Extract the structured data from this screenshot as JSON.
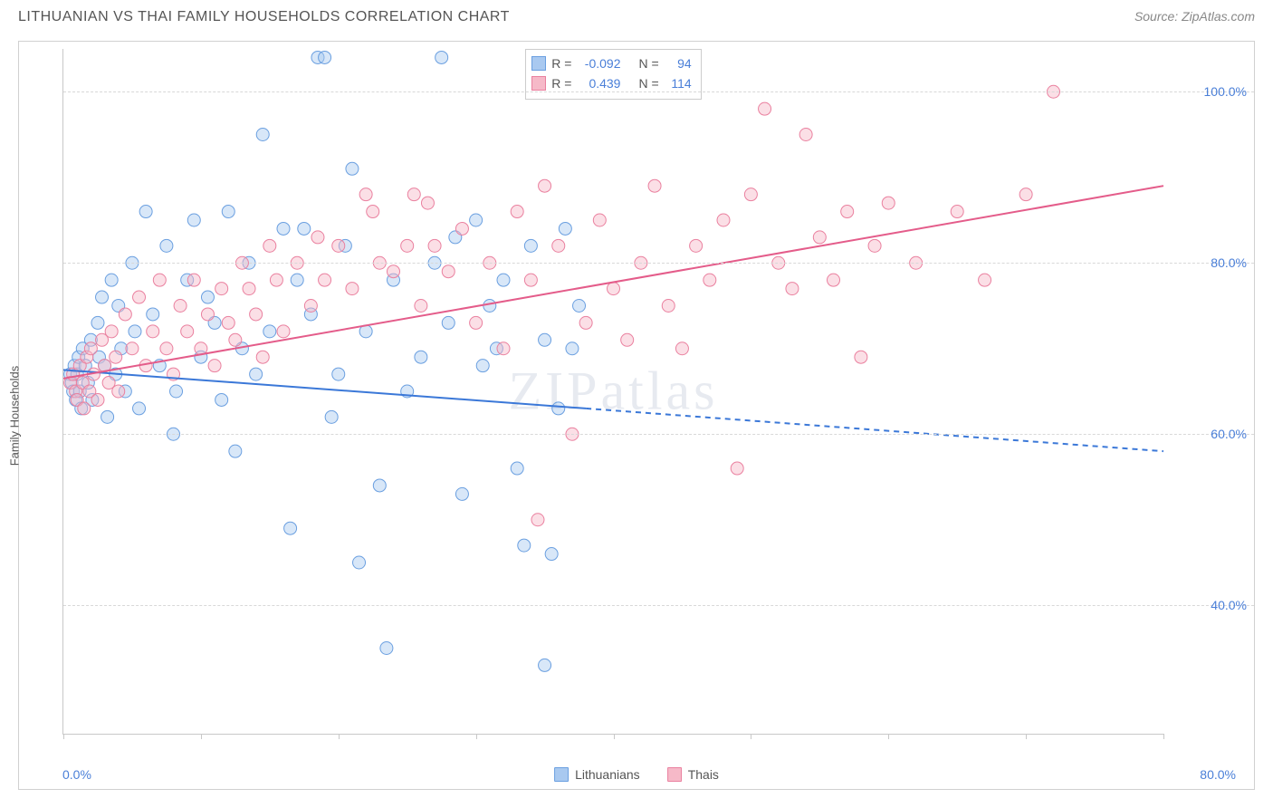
{
  "title": "LITHUANIAN VS THAI FAMILY HOUSEHOLDS CORRELATION CHART",
  "source_label": "Source: ",
  "source_name": "ZipAtlas.com",
  "ylabel": "Family Households",
  "watermark": "ZIPatlas",
  "chart": {
    "type": "scatter",
    "xlim": [
      0,
      80
    ],
    "ylim": [
      25,
      105
    ],
    "xtick_positions_pct": [
      0,
      10,
      20,
      30,
      40,
      50,
      60,
      70,
      80
    ],
    "ytick_labels": [
      {
        "value": 40.0,
        "label": "40.0%"
      },
      {
        "value": 60.0,
        "label": "60.0%"
      },
      {
        "value": 80.0,
        "label": "80.0%"
      },
      {
        "value": 100.0,
        "label": "100.0%"
      }
    ],
    "xaxis_left_label": "0.0%",
    "xaxis_right_label": "80.0%",
    "background_color": "#ffffff",
    "grid_color": "#d8d8d8",
    "axis_color": "#c8c8c8",
    "marker_radius": 7,
    "marker_opacity": 0.45,
    "line_width": 2
  },
  "series": [
    {
      "name": "Lithuanians",
      "color_fill": "#a9c9f0",
      "color_stroke": "#6a9fe0",
      "line_color": "#3b78d8",
      "r_value": "-0.092",
      "n_value": "94",
      "regression": {
        "x1": 0,
        "y1": 67.5,
        "x2_solid": 38,
        "y2_solid": 63.0,
        "x2": 80,
        "y2": 58.0
      },
      "points": [
        [
          0.5,
          67
        ],
        [
          0.6,
          66
        ],
        [
          0.7,
          65
        ],
        [
          0.8,
          68
        ],
        [
          0.9,
          64
        ],
        [
          1.0,
          67
        ],
        [
          1.1,
          69
        ],
        [
          1.2,
          65
        ],
        [
          1.3,
          63
        ],
        [
          1.4,
          70
        ],
        [
          1.6,
          68
        ],
        [
          1.8,
          66
        ],
        [
          2.0,
          71
        ],
        [
          2.1,
          64
        ],
        [
          2.5,
          73
        ],
        [
          2.6,
          69
        ],
        [
          2.8,
          76
        ],
        [
          3.0,
          68
        ],
        [
          3.2,
          62
        ],
        [
          3.5,
          78
        ],
        [
          3.8,
          67
        ],
        [
          4.0,
          75
        ],
        [
          4.2,
          70
        ],
        [
          4.5,
          65
        ],
        [
          5.0,
          80
        ],
        [
          5.2,
          72
        ],
        [
          5.5,
          63
        ],
        [
          6.0,
          86
        ],
        [
          6.5,
          74
        ],
        [
          7.0,
          68
        ],
        [
          7.5,
          82
        ],
        [
          8.0,
          60
        ],
        [
          8.2,
          65
        ],
        [
          9.0,
          78
        ],
        [
          9.5,
          85
        ],
        [
          10.0,
          69
        ],
        [
          10.5,
          76
        ],
        [
          11.0,
          73
        ],
        [
          11.5,
          64
        ],
        [
          12.0,
          86
        ],
        [
          12.5,
          58
        ],
        [
          13.0,
          70
        ],
        [
          13.5,
          80
        ],
        [
          14.0,
          67
        ],
        [
          14.5,
          95
        ],
        [
          15.0,
          72
        ],
        [
          16.0,
          84
        ],
        [
          16.5,
          49
        ],
        [
          17.0,
          78
        ],
        [
          17.5,
          84
        ],
        [
          18.0,
          74
        ],
        [
          18.5,
          104
        ],
        [
          19.0,
          104
        ],
        [
          19.5,
          62
        ],
        [
          20.0,
          67
        ],
        [
          20.5,
          82
        ],
        [
          21.0,
          91
        ],
        [
          21.5,
          45
        ],
        [
          22.0,
          72
        ],
        [
          23.0,
          54
        ],
        [
          23.5,
          35
        ],
        [
          24.0,
          78
        ],
        [
          25.0,
          65
        ],
        [
          26.0,
          69
        ],
        [
          27.0,
          80
        ],
        [
          27.5,
          104
        ],
        [
          28.0,
          73
        ],
        [
          28.5,
          83
        ],
        [
          29.0,
          53
        ],
        [
          30.0,
          85
        ],
        [
          30.5,
          68
        ],
        [
          31.0,
          75
        ],
        [
          31.5,
          70
        ],
        [
          32.0,
          78
        ],
        [
          33.0,
          56
        ],
        [
          33.5,
          47
        ],
        [
          34.0,
          82
        ],
        [
          35.0,
          71
        ],
        [
          35.0,
          33
        ],
        [
          35.5,
          46
        ],
        [
          36.0,
          63
        ],
        [
          36.5,
          84
        ],
        [
          37.0,
          70
        ],
        [
          37.5,
          75
        ]
      ]
    },
    {
      "name": "Thais",
      "color_fill": "#f6b9c8",
      "color_stroke": "#ea809f",
      "line_color": "#e45c8a",
      "r_value": "0.439",
      "n_value": "114",
      "regression": {
        "x1": 0,
        "y1": 66.5,
        "x2_solid": 80,
        "y2_solid": 89.0,
        "x2": 80,
        "y2": 89.0
      },
      "points": [
        [
          0.5,
          66
        ],
        [
          0.7,
          67
        ],
        [
          0.9,
          65
        ],
        [
          1.0,
          64
        ],
        [
          1.2,
          68
        ],
        [
          1.4,
          66
        ],
        [
          1.5,
          63
        ],
        [
          1.7,
          69
        ],
        [
          1.9,
          65
        ],
        [
          2.0,
          70
        ],
        [
          2.2,
          67
        ],
        [
          2.5,
          64
        ],
        [
          2.8,
          71
        ],
        [
          3.0,
          68
        ],
        [
          3.3,
          66
        ],
        [
          3.5,
          72
        ],
        [
          3.8,
          69
        ],
        [
          4.0,
          65
        ],
        [
          4.5,
          74
        ],
        [
          5.0,
          70
        ],
        [
          5.5,
          76
        ],
        [
          6.0,
          68
        ],
        [
          6.5,
          72
        ],
        [
          7.0,
          78
        ],
        [
          7.5,
          70
        ],
        [
          8.0,
          67
        ],
        [
          8.5,
          75
        ],
        [
          9.0,
          72
        ],
        [
          9.5,
          78
        ],
        [
          10.0,
          70
        ],
        [
          10.5,
          74
        ],
        [
          11.0,
          68
        ],
        [
          11.5,
          77
        ],
        [
          12.0,
          73
        ],
        [
          12.5,
          71
        ],
        [
          13.0,
          80
        ],
        [
          13.5,
          77
        ],
        [
          14.0,
          74
        ],
        [
          14.5,
          69
        ],
        [
          15.0,
          82
        ],
        [
          15.5,
          78
        ],
        [
          16.0,
          72
        ],
        [
          17.0,
          80
        ],
        [
          18.0,
          75
        ],
        [
          18.5,
          83
        ],
        [
          19.0,
          78
        ],
        [
          20.0,
          82
        ],
        [
          21.0,
          77
        ],
        [
          22.0,
          88
        ],
        [
          22.5,
          86
        ],
        [
          23.0,
          80
        ],
        [
          24.0,
          79
        ],
        [
          25.0,
          82
        ],
        [
          25.5,
          88
        ],
        [
          26.0,
          75
        ],
        [
          26.5,
          87
        ],
        [
          27.0,
          82
        ],
        [
          28.0,
          79
        ],
        [
          29.0,
          84
        ],
        [
          30.0,
          73
        ],
        [
          31.0,
          80
        ],
        [
          32.0,
          70
        ],
        [
          33.0,
          86
        ],
        [
          34.0,
          78
        ],
        [
          34.5,
          50
        ],
        [
          35.0,
          89
        ],
        [
          36.0,
          82
        ],
        [
          37.0,
          60
        ],
        [
          38.0,
          73
        ],
        [
          39.0,
          85
        ],
        [
          40.0,
          77
        ],
        [
          41.0,
          71
        ],
        [
          42.0,
          80
        ],
        [
          43.0,
          89
        ],
        [
          44.0,
          75
        ],
        [
          45.0,
          70
        ],
        [
          46.0,
          82
        ],
        [
          47.0,
          78
        ],
        [
          48.0,
          85
        ],
        [
          49.0,
          56
        ],
        [
          50.0,
          88
        ],
        [
          51.0,
          98
        ],
        [
          52.0,
          80
        ],
        [
          53.0,
          77
        ],
        [
          54.0,
          95
        ],
        [
          55.0,
          83
        ],
        [
          56.0,
          78
        ],
        [
          57.0,
          86
        ],
        [
          58.0,
          69
        ],
        [
          59.0,
          82
        ],
        [
          60.0,
          87
        ],
        [
          62.0,
          80
        ],
        [
          65.0,
          86
        ],
        [
          67.0,
          78
        ],
        [
          70.0,
          88
        ],
        [
          72.0,
          100
        ]
      ]
    }
  ],
  "stats_header": {
    "r": "R =",
    "n": "N ="
  },
  "colors": {
    "title": "#555555",
    "tick_label": "#4a7fd8"
  }
}
